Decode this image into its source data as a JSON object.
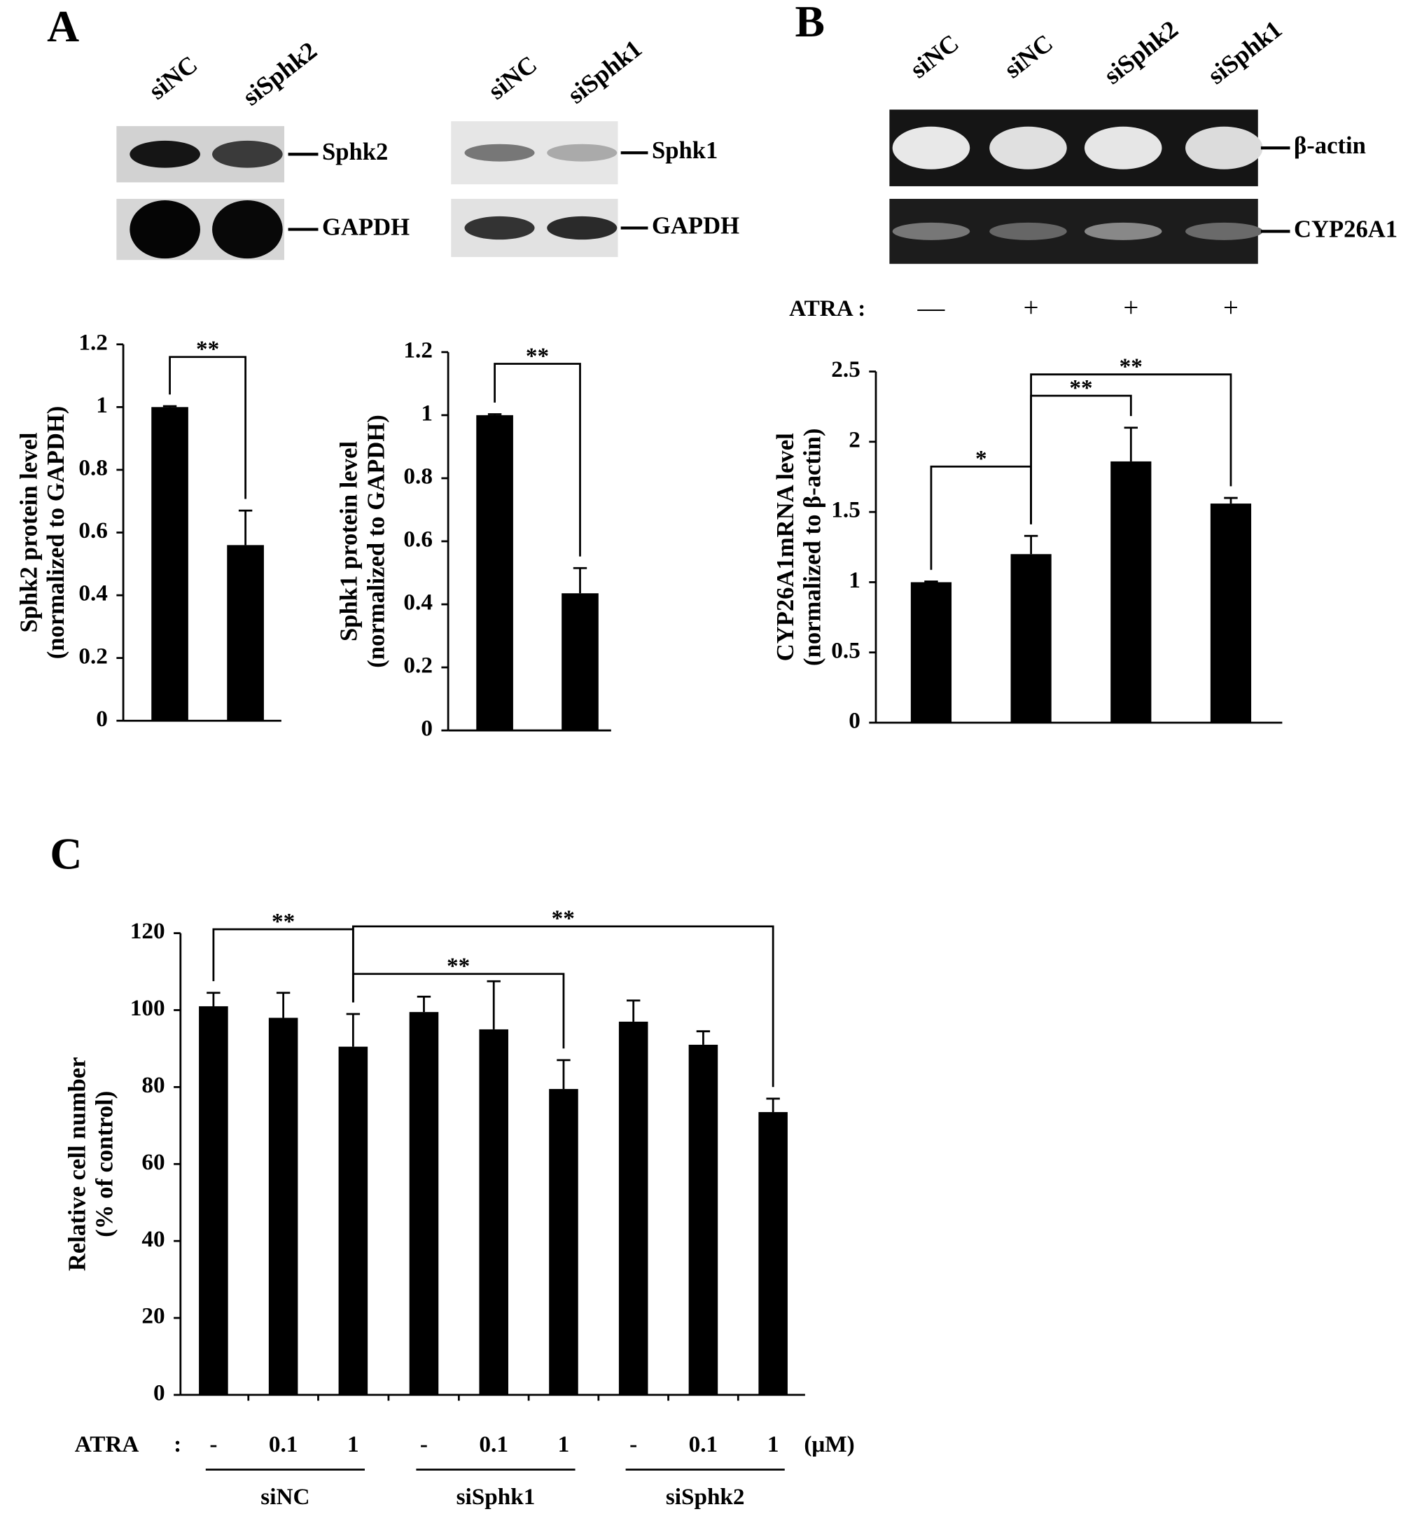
{
  "panel_labels": [
    "A",
    "B",
    "C"
  ],
  "blots": [
    {
      "lanes": [
        "siNC",
        "siSphk2"
      ],
      "bands": [
        "Sphk2",
        "GAPDH"
      ]
    },
    {
      "lanes": [
        "siNC",
        "siSphk1"
      ],
      "bands": [
        "Sphk1",
        "GAPDH"
      ]
    },
    {
      "lanes": [
        "siNC",
        "siNC",
        "siSphk2",
        "siSphk1"
      ],
      "bands": [
        "β-actin",
        "CYP26A1"
      ]
    }
  ],
  "chart_data": [
    {
      "type": "bar",
      "y_label": [
        "Sphk2 protein  level",
        "(normalized to GAPDH)"
      ],
      "categories": [
        null,
        null
      ],
      "values": [
        1.0,
        0.56
      ],
      "errors": [
        0.003,
        0.11
      ],
      "color": "#000000",
      "ylim": [
        0,
        1.2
      ],
      "yticks": [
        0,
        0.2,
        0.4,
        0.6,
        0.8,
        1,
        1.2
      ],
      "annotations": [
        "**"
      ]
    },
    {
      "type": "bar",
      "y_label": [
        "Sphk1 protein  level",
        "(normalized to GAPDH)"
      ],
      "categories": [
        null,
        null
      ],
      "values": [
        1.0,
        0.435
      ],
      "errors": [
        0.003,
        0.08
      ],
      "color": "#000000",
      "ylim": [
        0,
        1.2
      ],
      "yticks": [
        0,
        0.2,
        0.4,
        0.6,
        0.8,
        1,
        1.2
      ],
      "annotations": [
        "**"
      ]
    },
    {
      "type": "bar",
      "y_label": [
        "CYP26A1mRNA level",
        "(normalized to β-actin)"
      ],
      "row_label": "ATRA :",
      "categories": [
        "—",
        "+",
        "+",
        "+"
      ],
      "values": [
        1.0,
        1.2,
        1.86,
        1.56
      ],
      "errors": [
        0.005,
        0.13,
        0.24,
        0.04
      ],
      "color": "#000000",
      "ylim": [
        0,
        2.5
      ],
      "yticks": [
        0,
        0.5,
        1,
        1.5,
        2,
        2.5
      ],
      "annotations": [
        "*",
        "**",
        "**"
      ]
    },
    {
      "type": "bar",
      "y_label": [
        "Relative cell number",
        "(% of control)"
      ],
      "row_label": "ATRA",
      "row_separator": ":",
      "unit_label": "(μM)",
      "categories": [
        "-",
        "0.1",
        "1",
        "-",
        "0.1",
        "1",
        "-",
        "0.1",
        "1"
      ],
      "groups": [
        "siNC",
        "siSphk1",
        "siSphk2"
      ],
      "values": [
        101,
        98,
        90.5,
        99.5,
        95,
        79.5,
        97,
        91,
        73.5
      ],
      "errors": [
        3.5,
        6.5,
        8.5,
        4,
        12.5,
        7.5,
        5.5,
        3.5,
        3.5
      ],
      "color": "#000000",
      "ylim": [
        0,
        120
      ],
      "yticks": [
        0,
        20,
        40,
        60,
        80,
        100,
        120
      ],
      "annotations": [
        "**",
        "**",
        "**"
      ]
    }
  ]
}
